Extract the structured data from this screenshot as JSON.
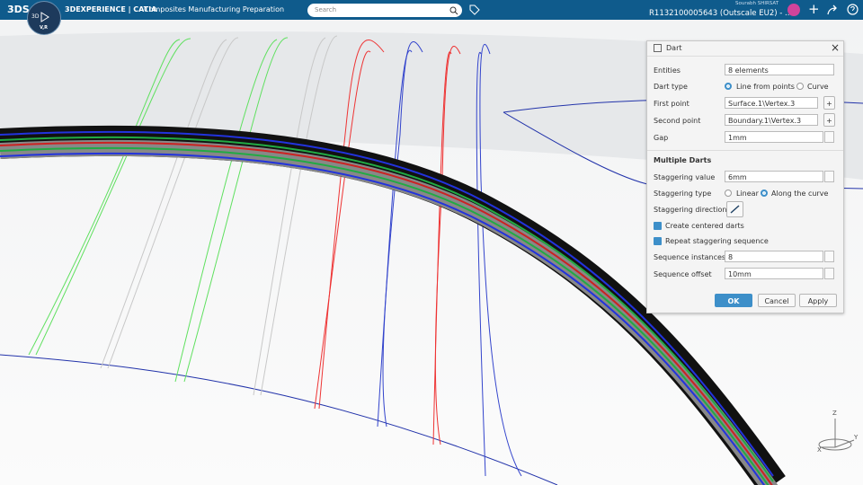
{
  "top_bar": {
    "brand": "3DEXPERIENCE | CATIA",
    "app": "Composites Manufacturing Preparation",
    "search_placeholder": "Search",
    "user": "Sourabh SHIRSAT",
    "tenant": "R1132100005643  (Outscale EU2) - ...",
    "compass_top": "3D",
    "compass_bottom": "V,R"
  },
  "dialog": {
    "title": "Dart",
    "entities": {
      "label": "Entities",
      "value": "8 elements"
    },
    "dart_type": {
      "label": "Dart type",
      "option_1": "Line from points",
      "option_2": "Curve"
    },
    "first_point": {
      "label": "First point",
      "value": "Surface.1\\Vertex.3"
    },
    "second_point": {
      "label": "Second point",
      "value": "Boundary.1\\Vertex.3"
    },
    "gap": {
      "label": "Gap",
      "value": "1mm"
    },
    "section": "Multiple Darts",
    "staggering_value": {
      "label": "Staggering value",
      "value": "6mm"
    },
    "staggering_type": {
      "label": "Staggering type",
      "option_1": "Linear",
      "option_2": "Along the curve"
    },
    "staggering_direction": {
      "label": "Staggering direction"
    },
    "create_centered": "Create centered darts",
    "repeat_sequence": "Repeat staggering sequence",
    "sequence_instances": {
      "label": "Sequence instances",
      "value": "8"
    },
    "sequence_offset": {
      "label": "Sequence offset",
      "value": "10mm"
    },
    "buttons": [
      "OK",
      "Cancel",
      "Apply"
    ]
  },
  "axes": {
    "z": "Z",
    "y": "Y",
    "x": "X"
  }
}
